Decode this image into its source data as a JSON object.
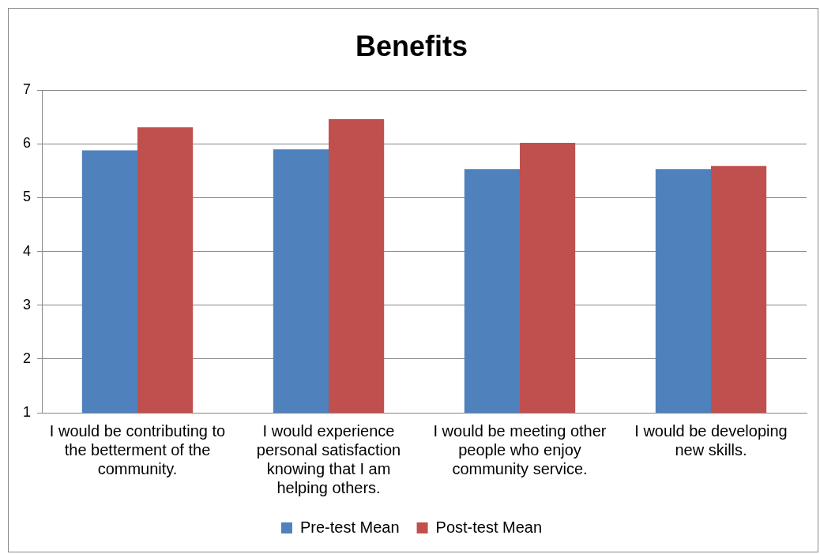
{
  "chart_data": {
    "type": "bar",
    "title": "Benefits",
    "categories": [
      "I would be contributing to the betterment of the community.",
      "I would experience personal satisfaction knowing that I am helping others.",
      "I would be meeting other people who enjoy community service.",
      "I would be developing new skills."
    ],
    "series": [
      {
        "name": "Pre-test Mean",
        "color": "#4f81bd",
        "values": [
          5.88,
          5.9,
          5.53,
          5.53
        ]
      },
      {
        "name": "Post-test Mean",
        "color": "#c0504d",
        "values": [
          6.31,
          6.46,
          6.02,
          5.59
        ]
      }
    ],
    "ylim": [
      1,
      7
    ],
    "yticks": [
      1,
      2,
      3,
      4,
      5,
      6,
      7
    ],
    "grid": "y",
    "legend": "bottom"
  }
}
